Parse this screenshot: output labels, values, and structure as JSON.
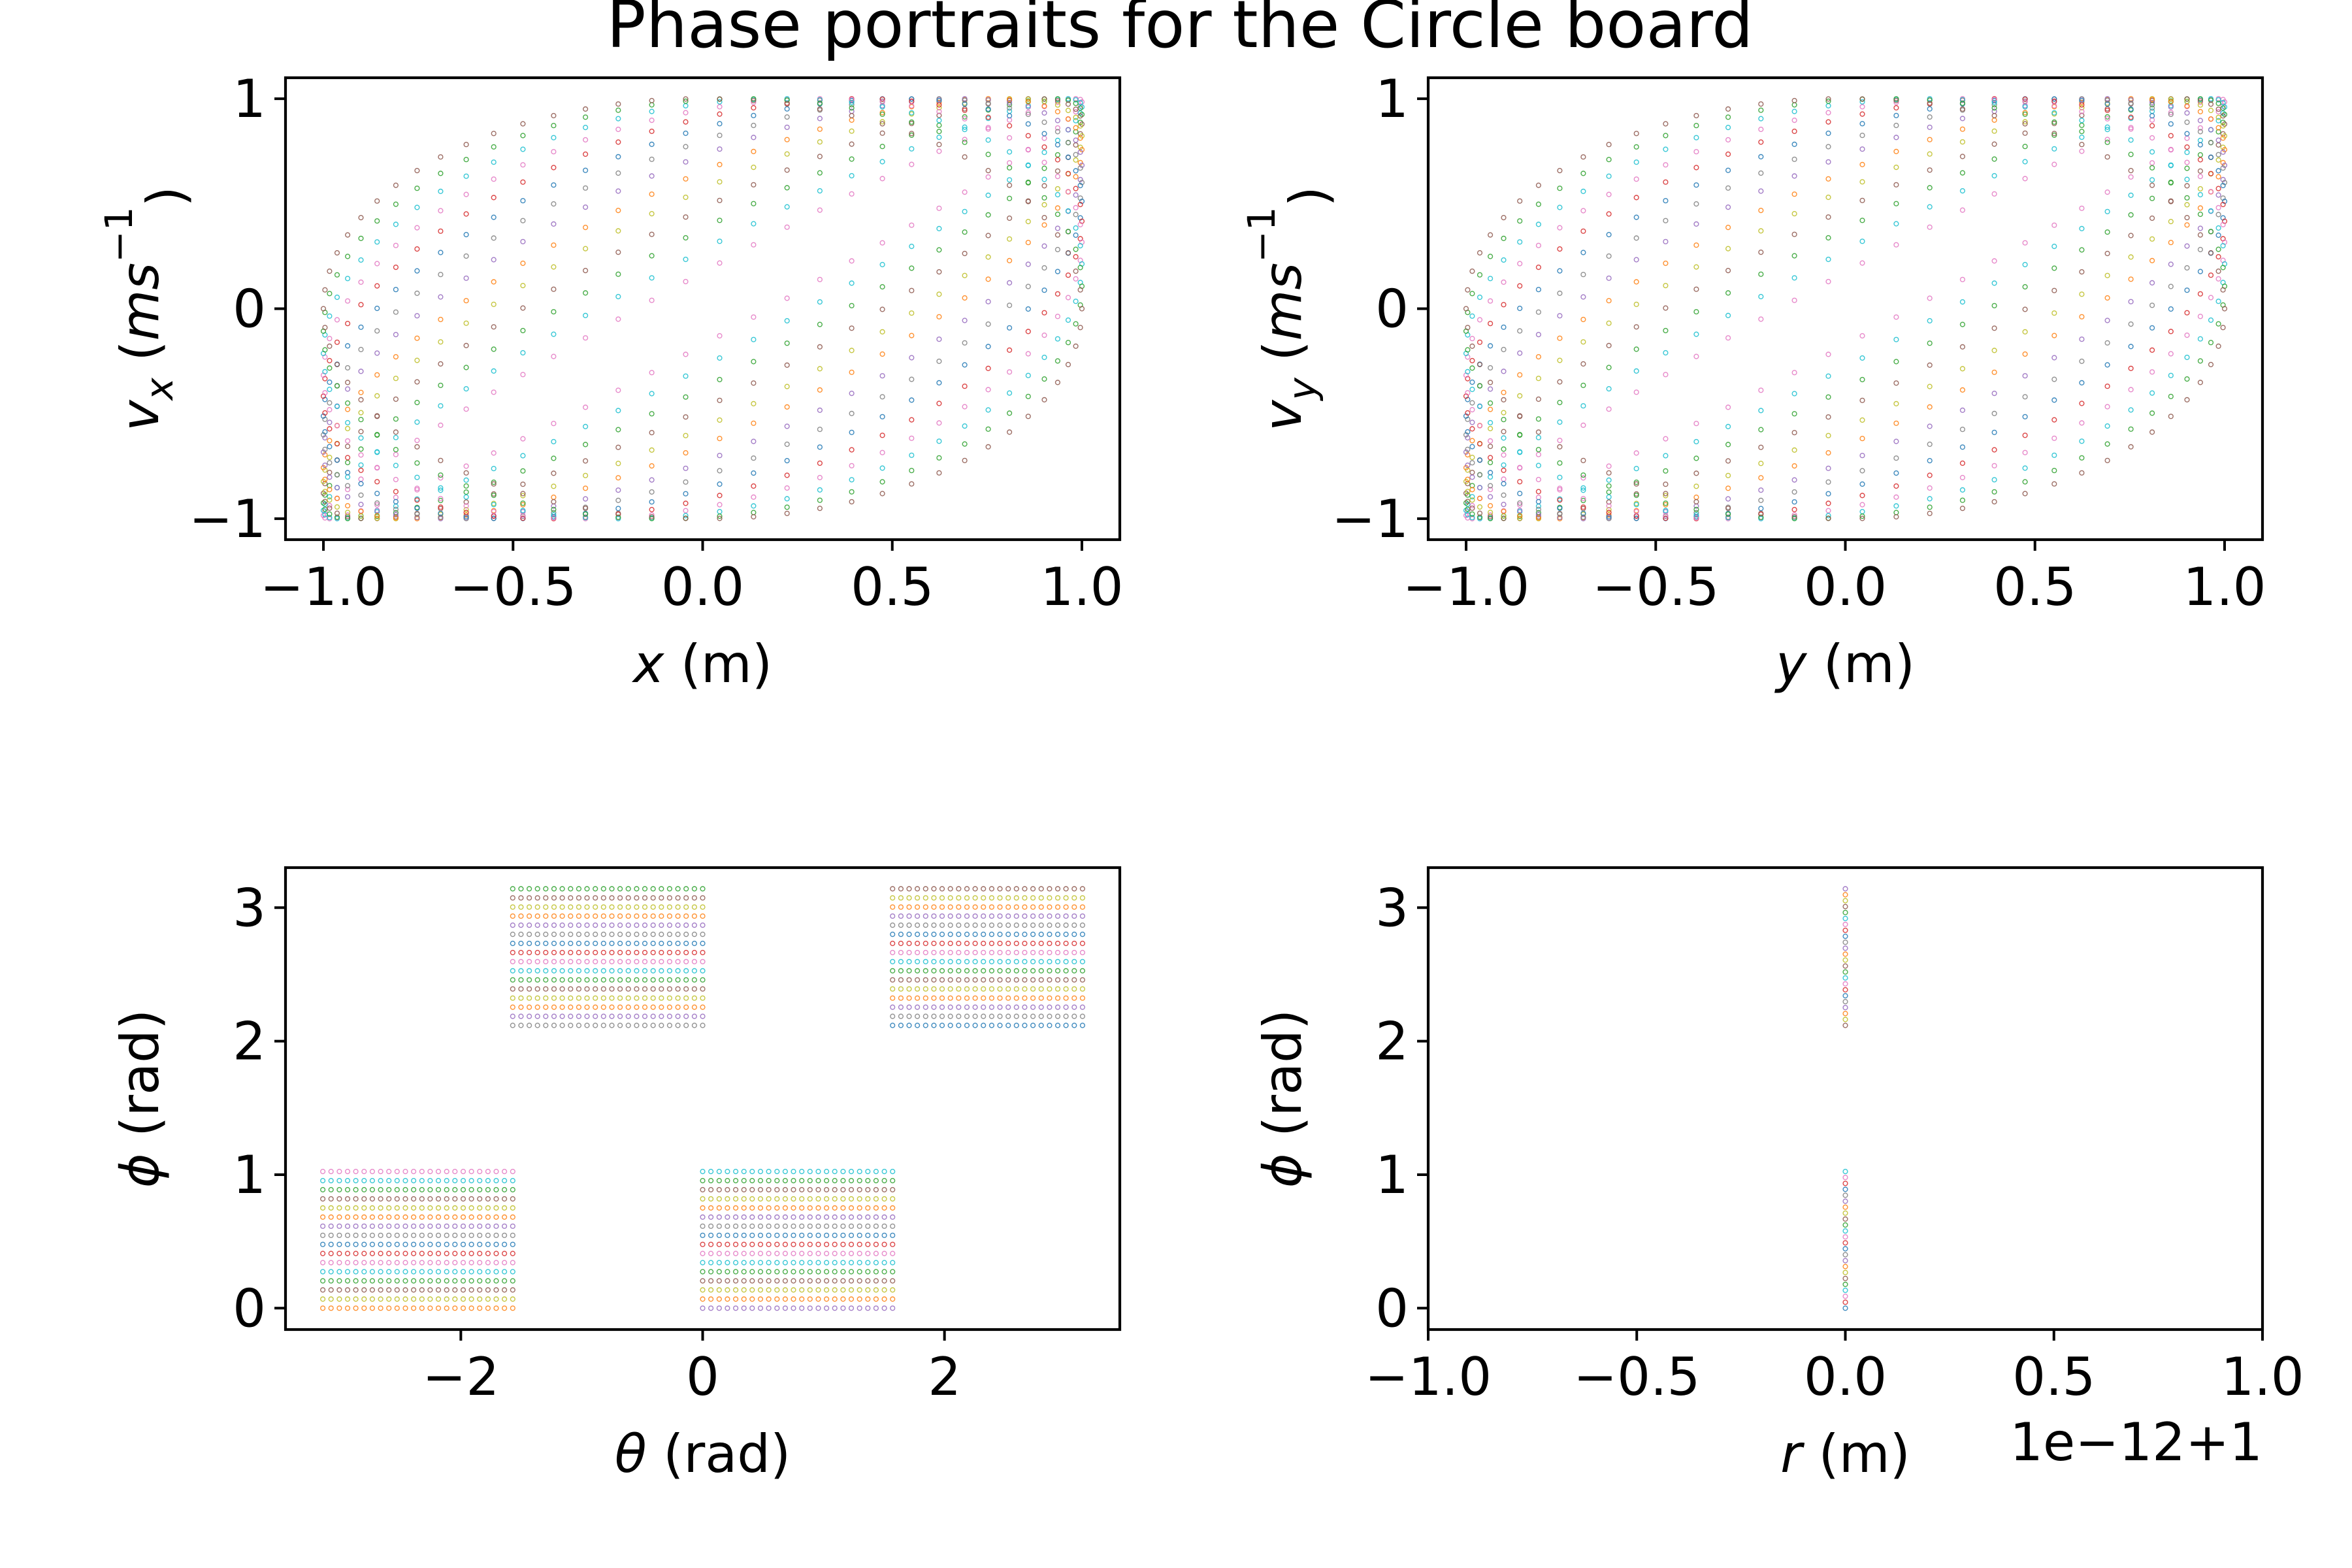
{
  "figure": {
    "title": "Phase portraits for the Circle board",
    "series_colors": [
      "#1f77b4",
      "#ff7f0e",
      "#2ca02c",
      "#d62728",
      "#9467bd",
      "#8c564b",
      "#e377c2",
      "#7f7f7f",
      "#bcbd22",
      "#17becf"
    ]
  },
  "chart_data": [
    {
      "id": "x-vx",
      "type": "scatter",
      "marker": "hollow-circle",
      "xlabel": {
        "sym": "x",
        "unit": " (m)"
      },
      "ylabel": {
        "sym": "v",
        "sub": "x",
        "pre": " (",
        "unit": "ms",
        "sup": "−1",
        "post": ")"
      },
      "xlim": [
        -1.1,
        1.1
      ],
      "ylim": [
        -1.1,
        1.1
      ],
      "xticks": [
        -1.0,
        -0.5,
        0.0,
        0.5,
        1.0
      ],
      "xtick_labels": [
        "−1.0",
        "−0.5",
        "0.0",
        "0.5",
        "1.0"
      ],
      "yticks": [
        -1,
        0,
        1
      ],
      "ytick_labels": [
        "−1",
        "0",
        "1"
      ],
      "curves": {
        "shape": "ellipse-family",
        "x_range": [
          -1,
          1
        ],
        "v_range": [
          -1,
          1
        ],
        "phase_lags_deg_min": 10,
        "phase_lags_deg_max": 90,
        "count": 14
      }
    },
    {
      "id": "y-vy",
      "type": "scatter",
      "marker": "hollow-circle",
      "xlabel": {
        "sym": "y",
        "unit": " (m)"
      },
      "ylabel": {
        "sym": "v",
        "sub": "y",
        "pre": " (",
        "unit": "ms",
        "sup": "−1",
        "post": ")"
      },
      "xlim": [
        -1.1,
        1.1
      ],
      "ylim": [
        -1.1,
        1.1
      ],
      "xticks": [
        -1.0,
        -0.5,
        0.0,
        0.5,
        1.0
      ],
      "xtick_labels": [
        "−1.0",
        "−0.5",
        "0.0",
        "0.5",
        "1.0"
      ],
      "yticks": [
        -1,
        0,
        1
      ],
      "ytick_labels": [
        "−1",
        "0",
        "1"
      ],
      "curves": {
        "shape": "ellipse-family",
        "x_range": [
          -1,
          1
        ],
        "v_range": [
          -1,
          1
        ],
        "phase_lags_deg_min": 10,
        "phase_lags_deg_max": 90,
        "count": 14
      }
    },
    {
      "id": "theta-phi",
      "type": "scatter",
      "marker": "hollow-circle",
      "xlabel": {
        "sym": "θ",
        "unit": " (rad)"
      },
      "ylabel": {
        "sym": "ϕ",
        "unit": " (rad)"
      },
      "xlim": [
        -3.45,
        3.45
      ],
      "ylim": [
        -0.16,
        3.3
      ],
      "xticks": [
        -2,
        0,
        2
      ],
      "xtick_labels": [
        "−2",
        "0",
        "2"
      ],
      "yticks": [
        0,
        1,
        2,
        3
      ],
      "ytick_labels": [
        "0",
        "1",
        "2",
        "3"
      ],
      "blocks": [
        {
          "theta": [
            -3.1416,
            -1.5708
          ],
          "phi": [
            0.0,
            1.0236
          ]
        },
        {
          "theta": [
            0.0,
            1.5708
          ],
          "phi": [
            0.0,
            1.0236
          ]
        },
        {
          "theta": [
            -1.5708,
            0.0
          ],
          "phi": [
            2.118,
            3.1416
          ]
        },
        {
          "theta": [
            1.5708,
            3.1416
          ],
          "phi": [
            2.118,
            3.1416
          ]
        }
      ]
    },
    {
      "id": "r-phi",
      "type": "scatter",
      "marker": "hollow-circle",
      "xlabel": {
        "sym": "r",
        "unit": " (m)"
      },
      "ylabel": {
        "sym": "ϕ",
        "unit": " (rad)"
      },
      "offset_text": "1e−12+1",
      "xlim": [
        -1.0,
        1.0
      ],
      "ylim": [
        -0.16,
        3.3
      ],
      "xticks": [
        -1.0,
        -0.5,
        0.0,
        0.5,
        1.0
      ],
      "xtick_labels": [
        "−1.0",
        "−0.5",
        "0.0",
        "0.5",
        "1.0"
      ],
      "yticks": [
        0,
        1,
        2,
        3
      ],
      "ytick_labels": [
        "0",
        "1",
        "2",
        "3"
      ],
      "r_value": 0.0,
      "phi_ranges": [
        [
          0.0,
          1.0236
        ],
        [
          2.118,
          3.1416
        ]
      ]
    }
  ]
}
